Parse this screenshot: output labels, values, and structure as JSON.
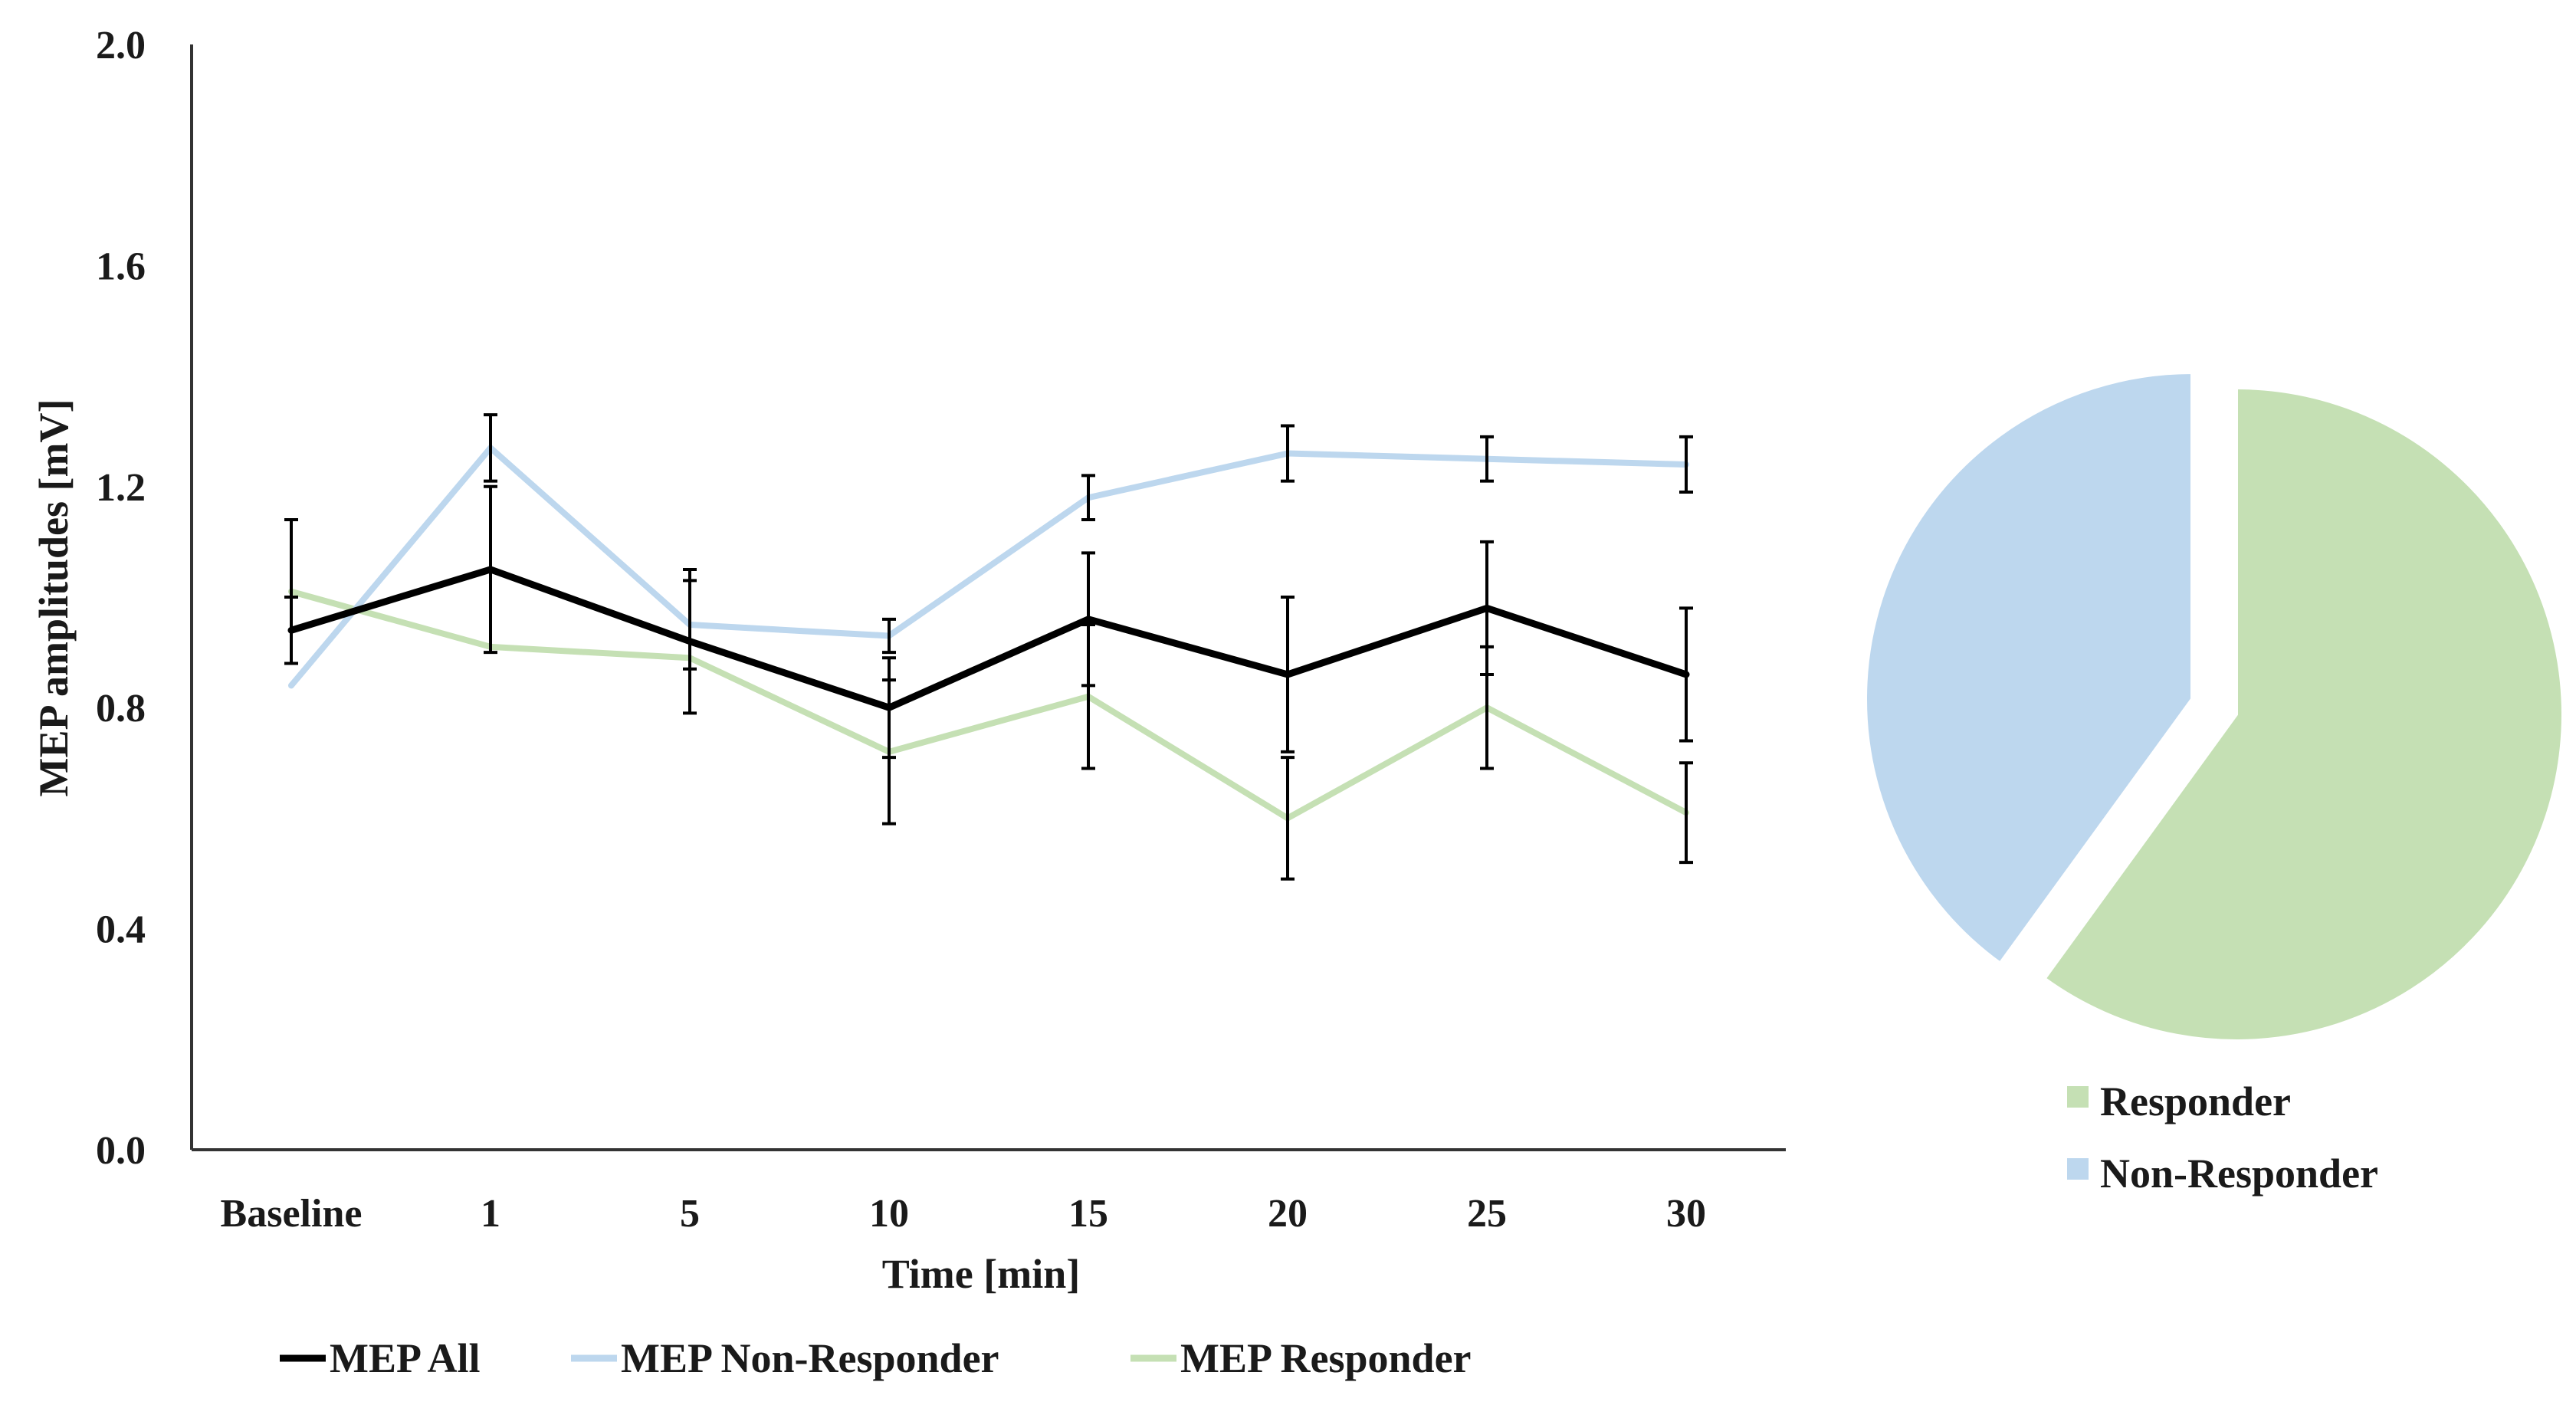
{
  "chart_data": [
    {
      "type": "line",
      "title": "",
      "xlabel": "Time [min]",
      "ylabel": "MEP amplitudes [mV]",
      "categories": [
        "Baseline",
        "1",
        "5",
        "10",
        "15",
        "20",
        "25",
        "30"
      ],
      "ylim": [
        0.0,
        2.0
      ],
      "yticks": [
        "0.0",
        "0.4",
        "0.8",
        "1.2",
        "1.6",
        "2.0"
      ],
      "grid": false,
      "legend_position": "bottom",
      "series": [
        {
          "name": "MEP All",
          "color": "#000000",
          "values": [
            0.94,
            1.05,
            0.92,
            0.8,
            0.96,
            0.86,
            0.98,
            0.86
          ],
          "error": [
            0.06,
            0.15,
            0.13,
            0.09,
            0.12,
            0.14,
            0.12,
            0.12
          ]
        },
        {
          "name": "MEP Non-Responder",
          "color": "#bdd7ee",
          "values": [
            0.84,
            1.27,
            0.95,
            0.93,
            1.18,
            1.26,
            1.25,
            1.24
          ],
          "error": [
            0.0,
            0.06,
            0.08,
            0.03,
            0.04,
            0.05,
            0.04,
            0.05
          ]
        },
        {
          "name": "MEP Responder",
          "color": "#c5e0b4",
          "values": [
            1.01,
            0.91,
            0.89,
            0.72,
            0.82,
            0.6,
            0.8,
            0.61
          ],
          "error": [
            0.13,
            0.0,
            0.0,
            0.13,
            0.13,
            0.11,
            0.11,
            0.09
          ]
        }
      ]
    },
    {
      "type": "pie",
      "title": "",
      "legend_position": "right-bottom",
      "labels": [
        "Responder",
        "Non-Responder"
      ],
      "values": [
        60,
        40
      ],
      "colors": [
        "#c5e0b4",
        "#bdd7ee"
      ]
    }
  ]
}
